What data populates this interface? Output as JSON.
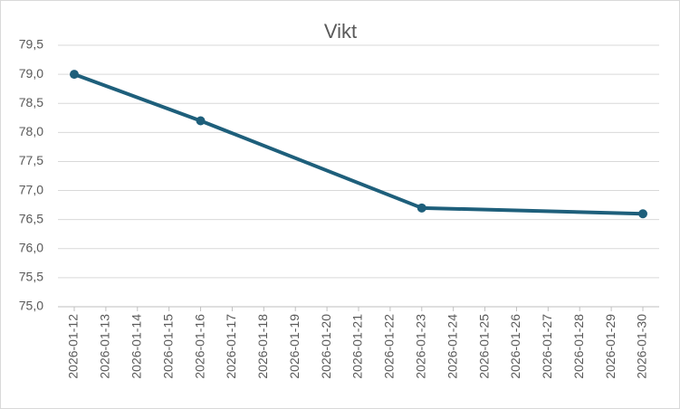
{
  "chart_data": {
    "type": "line",
    "title": "Vikt",
    "x": [
      "2026-01-12",
      "2026-01-16",
      "2026-01-23",
      "2026-01-30"
    ],
    "values": [
      79.0,
      78.2,
      76.7,
      76.6
    ],
    "color": "#1e5f7b",
    "xlim": [
      "2026-01-12",
      "2026-01-30"
    ],
    "xticks": [
      "2026-01-12",
      "2026-01-13",
      "2026-01-14",
      "2026-01-15",
      "2026-01-16",
      "2026-01-17",
      "2026-01-18",
      "2026-01-19",
      "2026-01-20",
      "2026-01-21",
      "2026-01-22",
      "2026-01-23",
      "2026-01-24",
      "2026-01-25",
      "2026-01-26",
      "2026-01-27",
      "2026-01-28",
      "2026-01-29",
      "2026-01-30"
    ],
    "ylim": [
      75,
      79.5
    ],
    "yticks": [
      {
        "value": 75,
        "label": "75,0"
      },
      {
        "value": 75.5,
        "label": "75,5"
      },
      {
        "value": 76,
        "label": "76,0"
      },
      {
        "value": 76.5,
        "label": "76,5"
      },
      {
        "value": 77,
        "label": "77,0"
      },
      {
        "value": 77.5,
        "label": "77,5"
      },
      {
        "value": 78,
        "label": "78,0"
      },
      {
        "value": 78.5,
        "label": "78,5"
      },
      {
        "value": 79,
        "label": "79,0"
      },
      {
        "value": 79.5,
        "label": "79,5"
      }
    ],
    "grid": true
  }
}
